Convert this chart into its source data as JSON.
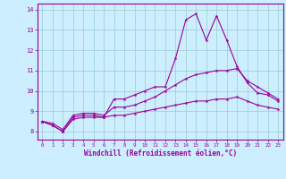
{
  "x": [
    0,
    1,
    2,
    3,
    4,
    5,
    6,
    7,
    8,
    9,
    10,
    11,
    12,
    13,
    14,
    15,
    16,
    17,
    18,
    19,
    20,
    21,
    22,
    23
  ],
  "line1": [
    8.5,
    8.3,
    8.0,
    8.7,
    8.8,
    8.8,
    8.7,
    9.6,
    9.6,
    9.8,
    10.0,
    10.2,
    10.2,
    11.6,
    13.5,
    13.8,
    12.5,
    13.7,
    12.5,
    11.2,
    10.4,
    9.9,
    9.8,
    9.5
  ],
  "line2": [
    8.5,
    8.4,
    8.1,
    8.8,
    8.9,
    8.9,
    8.8,
    9.2,
    9.2,
    9.3,
    9.5,
    9.7,
    10.0,
    10.3,
    10.6,
    10.8,
    10.9,
    11.0,
    11.0,
    11.1,
    10.5,
    10.2,
    9.9,
    9.6
  ],
  "line3": [
    8.5,
    8.3,
    8.0,
    8.6,
    8.7,
    8.7,
    8.7,
    8.8,
    8.8,
    8.9,
    9.0,
    9.1,
    9.2,
    9.3,
    9.4,
    9.5,
    9.5,
    9.6,
    9.6,
    9.7,
    9.5,
    9.3,
    9.2,
    9.1
  ],
  "line_color": "#990099",
  "bg_color": "#cceeff",
  "grid_color": "#99cccc",
  "xlabel": "Windchill (Refroidissement éolien,°C)",
  "xlim_min": -0.5,
  "xlim_max": 23.5,
  "ylim_min": 7.6,
  "ylim_max": 14.3,
  "yticks": [
    8,
    9,
    10,
    11,
    12,
    13,
    14
  ],
  "xticks": [
    0,
    1,
    2,
    3,
    4,
    5,
    6,
    7,
    8,
    9,
    10,
    11,
    12,
    13,
    14,
    15,
    16,
    17,
    18,
    19,
    20,
    21,
    22,
    23
  ]
}
